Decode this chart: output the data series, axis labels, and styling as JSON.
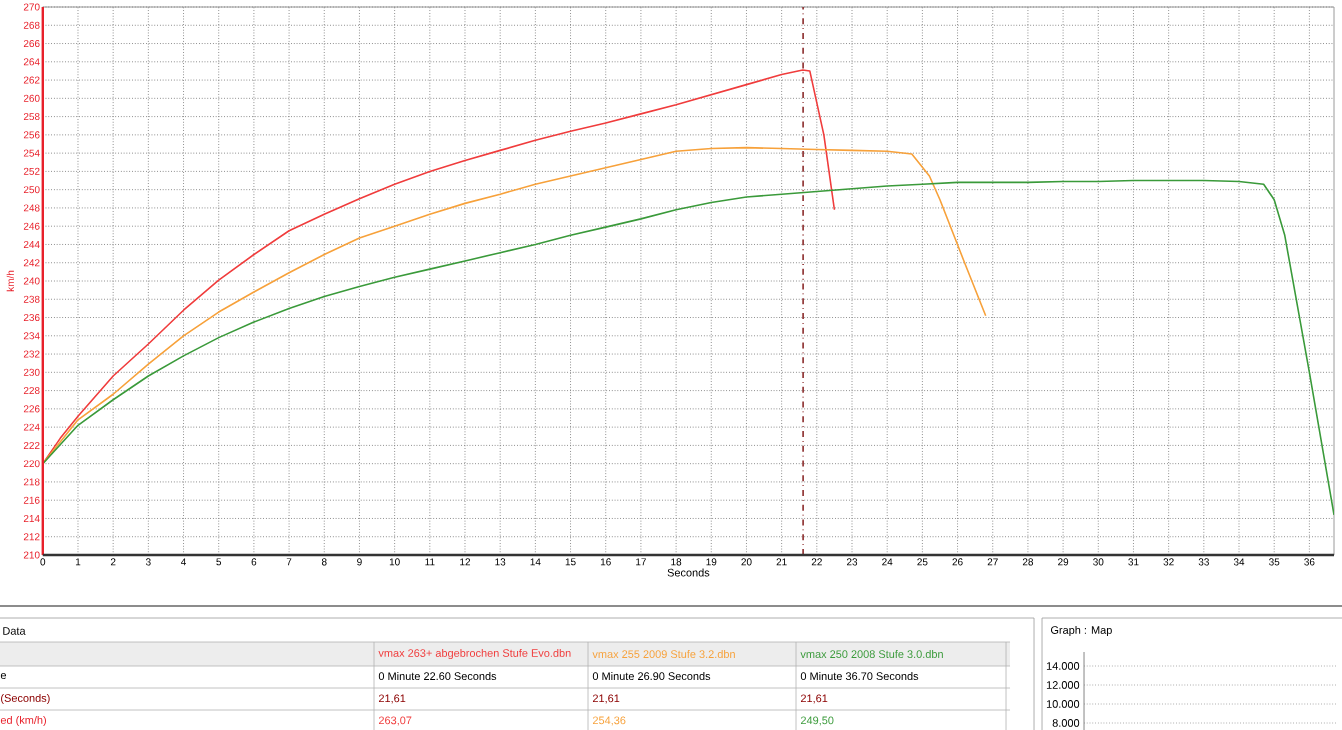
{
  "chart_data": {
    "type": "line",
    "xlabel": "Seconds",
    "ylabel": "km/h",
    "xlim": [
      0,
      36.7
    ],
    "xticks": [
      0,
      1,
      2,
      3,
      4,
      5,
      6,
      7,
      8,
      9,
      10,
      11,
      12,
      13,
      14,
      15,
      16,
      17,
      18,
      19,
      20,
      21,
      22,
      23,
      24,
      25,
      26,
      27,
      28,
      29,
      30,
      31,
      32,
      33,
      34,
      35,
      36
    ],
    "ylim": [
      210,
      270
    ],
    "yticks": [
      210,
      212,
      214,
      216,
      218,
      220,
      222,
      224,
      226,
      228,
      230,
      232,
      234,
      236,
      238,
      240,
      242,
      244,
      246,
      248,
      250,
      252,
      254,
      256,
      258,
      260,
      262,
      264,
      266,
      268,
      270
    ],
    "grid": true,
    "marker": "none",
    "line_style": "solid",
    "series": [
      {
        "name": "vmax 263+ abgebrochen Stufe Evo.dbn",
        "color": "#f03c3c",
        "x": [
          0,
          0.5,
          1,
          2,
          3,
          4,
          5,
          6,
          7,
          8,
          9,
          10,
          11,
          12,
          13,
          14,
          15,
          16,
          17,
          18,
          19,
          20,
          21,
          21.6,
          21.8,
          22.2,
          22.5
        ],
        "values": [
          220,
          222.8,
          225.2,
          229.6,
          233.1,
          236.8,
          240.1,
          242.9,
          245.5,
          247.3,
          249.0,
          250.6,
          252.0,
          253.2,
          254.3,
          255.4,
          256.4,
          257.3,
          258.3,
          259.3,
          260.4,
          261.5,
          262.6,
          263.1,
          263.0,
          256,
          247.8
        ]
      },
      {
        "name": "vmax 255 2009 Stufe 3.2.dbn",
        "color": "#f7a13a",
        "x": [
          0,
          1,
          2,
          3,
          4,
          5,
          6,
          7,
          8,
          9,
          10,
          11,
          12,
          13,
          14,
          15,
          16,
          17,
          18,
          19,
          20,
          21,
          22,
          23,
          24,
          24.7,
          25.2,
          25.5,
          26.2,
          26.8
        ],
        "values": [
          220,
          224.8,
          227.6,
          230.9,
          234,
          236.6,
          238.8,
          240.9,
          242.9,
          244.7,
          246.0,
          247.3,
          248.5,
          249.5,
          250.6,
          251.5,
          252.4,
          253.3,
          254.2,
          254.5,
          254.6,
          254.5,
          254.4,
          254.3,
          254.2,
          253.9,
          251.5,
          248.9,
          242,
          236.2
        ]
      },
      {
        "name": "vmax 250 2008 Stufe 3.0.dbn",
        "color": "#3a9a3a",
        "x": [
          0,
          1,
          2,
          3,
          4,
          5,
          6,
          7,
          8,
          9,
          10,
          11,
          12,
          13,
          14,
          15,
          16,
          17,
          18,
          19,
          20,
          21,
          22,
          23,
          24,
          25,
          26,
          27,
          28,
          29,
          30,
          31,
          32,
          33,
          34,
          34.7,
          35.0,
          35.3,
          36.0,
          36.7
        ],
        "values": [
          220,
          224.2,
          227,
          229.6,
          231.8,
          233.8,
          235.5,
          237,
          238.3,
          239.4,
          240.4,
          241.3,
          242.2,
          243.1,
          244,
          245,
          245.9,
          246.8,
          247.8,
          248.6,
          249.2,
          249.5,
          249.8,
          250.1,
          250.4,
          250.6,
          250.8,
          250.8,
          250.8,
          250.9,
          250.9,
          251,
          251,
          251,
          250.9,
          250.6,
          248.9,
          245,
          230,
          214.4
        ]
      }
    ],
    "ref_lines": [
      {
        "axis": "x",
        "value": 21.61,
        "color": "#8b2b2b",
        "line_style": "dashed"
      }
    ],
    "annotations": [
      "Data",
      "Graph : Map",
      "e",
      "(Seconds)",
      "ed (km/h)",
      "0 Minute 22.60 Seconds",
      "0 Minute 26.90 Seconds",
      "0 Minute 36.70 Seconds",
      "21,61",
      "21,61",
      "21,61",
      "263,07",
      "254,36",
      "249,50",
      "14.000",
      "12.000",
      "10.000",
      "8.000"
    ]
  }
}
